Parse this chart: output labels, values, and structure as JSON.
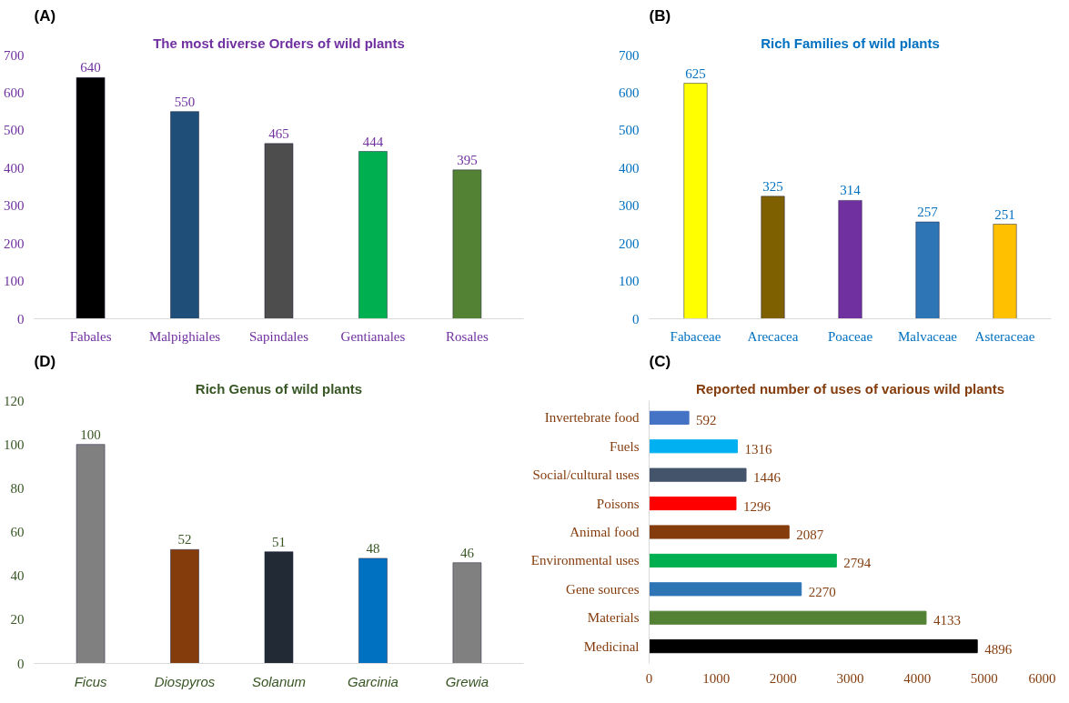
{
  "chart_data": [
    {
      "type": "bar",
      "title": "The most diverse Orders of wild plants",
      "annotations": [
        "(A)"
      ],
      "categories": [
        "Fabales",
        "Malpighiales",
        "Sapindales",
        "Gentianales",
        "Rosales"
      ],
      "values": [
        640,
        550,
        465,
        444,
        395
      ],
      "colors": [
        "#000000",
        "#1f4e79",
        "#4d4d4d",
        "#00b050",
        "#548235"
      ],
      "ylim": [
        0,
        700
      ],
      "yticks": [
        0,
        100,
        200,
        300,
        400,
        500,
        600,
        700
      ],
      "data_labels": true,
      "grid": false
    },
    {
      "type": "bar",
      "title": "Rich Families of wild plants",
      "annotations": [
        "(B)"
      ],
      "categories": [
        "Fabaceae",
        "Arecacea",
        "Poaceae",
        "Malvaceae",
        "Asteraceae"
      ],
      "values": [
        625,
        325,
        314,
        257,
        251
      ],
      "colors": [
        "#ffff00",
        "#7f6000",
        "#7030a0",
        "#2e75b6",
        "#ffc000"
      ],
      "ylim": [
        0,
        700
      ],
      "yticks": [
        0,
        100,
        200,
        300,
        400,
        500,
        600,
        700
      ],
      "data_labels": true,
      "grid": false
    },
    {
      "type": "bar",
      "title": "Rich Genus of wild plants",
      "annotations": [
        "(D)"
      ],
      "categories": [
        "Ficus",
        "Diospyros",
        "Solanum",
        "Garcinia",
        "Grewia"
      ],
      "values": [
        100,
        52,
        51,
        48,
        46
      ],
      "colors": [
        "#808080",
        "#843c0c",
        "#222a35",
        "#0070c0",
        "#808080"
      ],
      "ylim": [
        0,
        120
      ],
      "yticks": [
        0,
        20,
        40,
        60,
        80,
        100,
        120
      ],
      "data_labels": true,
      "grid": false
    },
    {
      "type": "bar",
      "orientation": "horizontal",
      "title": "Reported number of uses of various wild plants",
      "annotations": [
        "(C)"
      ],
      "categories": [
        "Invertebrate food",
        "Fuels",
        "Social/cultural uses",
        "Poisons",
        "Animal food",
        "Environmental uses",
        "Gene sources",
        "Materials",
        "Medicinal"
      ],
      "values": [
        592,
        1316,
        1446,
        1296,
        2087,
        2794,
        2270,
        4133,
        4896
      ],
      "colors": [
        "#4472c4",
        "#00b0f0",
        "#44546a",
        "#ff0000",
        "#843c0c",
        "#00b050",
        "#2e75b6",
        "#548235",
        "#000000"
      ],
      "xlim": [
        0,
        6000
      ],
      "xticks": [
        0,
        1000,
        2000,
        3000,
        4000,
        5000,
        6000
      ],
      "data_labels": true,
      "grid": false
    }
  ]
}
